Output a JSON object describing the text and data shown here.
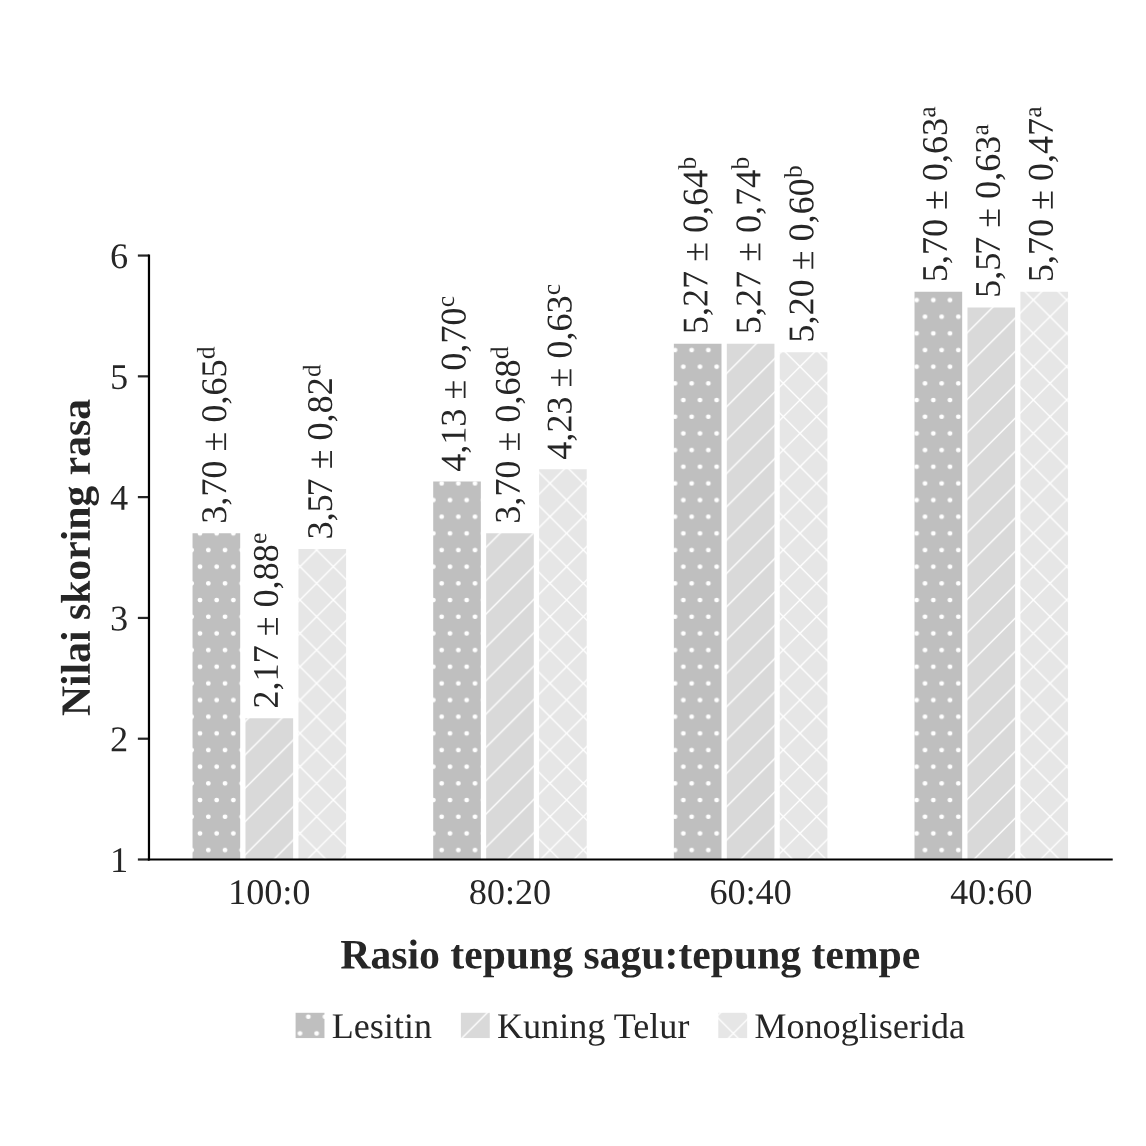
{
  "chart_data": {
    "type": "bar",
    "xlabel": "Rasio tepung sagu:tepung tempe",
    "ylabel": "Nilai skoring rasa",
    "categories": [
      "100:0",
      "80:20",
      "60:40",
      "40:60"
    ],
    "series": [
      {
        "name": "Lesitin",
        "color": "#bfbfbf",
        "values": [
          3.7,
          4.13,
          5.27,
          5.7
        ],
        "value_labels": [
          "3,70 ± 0,65$^{d}$",
          "4,13 ± 0,70$^{c}$",
          "5,27 ± 0,64$^{b}$",
          "5,70 ± 0,63$^{a}$"
        ]
      },
      {
        "name": "Kuning Telur",
        "color": "#d9d9d9",
        "values": [
          2.17,
          3.7,
          5.27,
          5.57
        ],
        "value_labels": [
          "2,17 ± 0,88$^{e}$",
          "3,70 ± 0,68$^{d}$",
          "5,27 ± 0,74$^{b}$",
          "5,57 ± 0,63$^{a}$"
        ]
      },
      {
        "name": "Monogliserida",
        "color": "#e6e6e6",
        "values": [
          3.57,
          4.23,
          5.2,
          5.7
        ],
        "value_labels": [
          "3,57 ± 0,82$^{d}$",
          "4,23 ± 0,63$^{c}$",
          "5,20 ± 0,60$^{b}$",
          "5,70 ± 0,47$^{a}$"
        ]
      }
    ],
    "ylim": [
      1,
      6
    ],
    "yticks": [
      1,
      2,
      3,
      4,
      5,
      6
    ],
    "grid": false,
    "legend": "bottom"
  }
}
